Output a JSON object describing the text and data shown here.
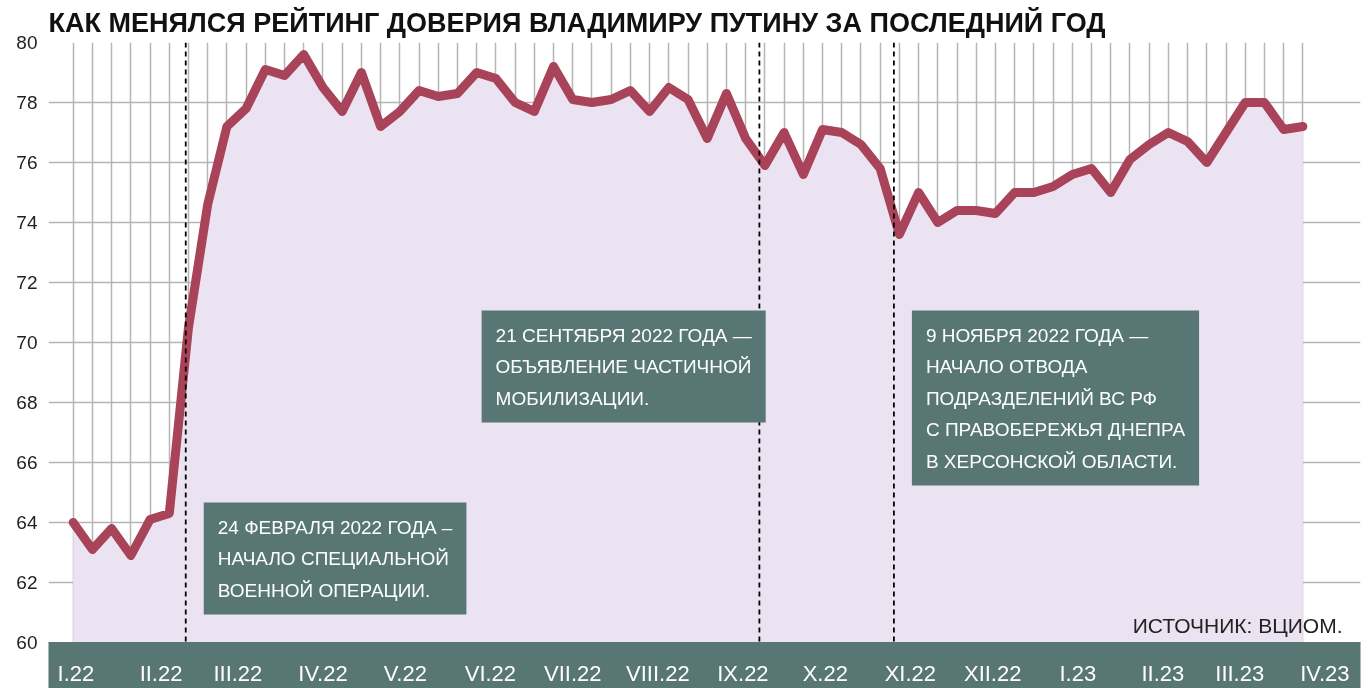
{
  "chart_data": {
    "type": "area",
    "title": "КАК МЕНЯЛСЯ РЕЙТИНГ ДОВЕРИЯ ВЛАДИМИРУ ПУТИНУ ЗА ПОСЛЕДНИЙ ГОД",
    "x": [
      "2022-01-14",
      "2022-01-21",
      "2022-01-28",
      "2022-02-04",
      "2022-02-11",
      "2022-02-18",
      "2022-02-25",
      "2022-03-04",
      "2022-03-11",
      "2022-03-18",
      "2022-03-25",
      "2022-04-01",
      "2022-04-08",
      "2022-04-15",
      "2022-04-22",
      "2022-04-29",
      "2022-05-06",
      "2022-05-13",
      "2022-05-20",
      "2022-05-27",
      "2022-06-03",
      "2022-06-10",
      "2022-06-17",
      "2022-06-24",
      "2022-07-01",
      "2022-07-08",
      "2022-07-15",
      "2022-07-22",
      "2022-07-29",
      "2022-08-05",
      "2022-08-12",
      "2022-08-19",
      "2022-08-26",
      "2022-09-02",
      "2022-09-09",
      "2022-09-16",
      "2022-09-23",
      "2022-09-30",
      "2022-10-07",
      "2022-10-14",
      "2022-10-21",
      "2022-10-28",
      "2022-11-04",
      "2022-11-11",
      "2022-11-18",
      "2022-11-25",
      "2022-12-02",
      "2022-12-09",
      "2022-12-16",
      "2022-12-23",
      "2022-12-30",
      "2023-01-06",
      "2023-01-13",
      "2023-01-20",
      "2023-01-27",
      "2023-02-03",
      "2023-02-10",
      "2023-02-17",
      "2023-02-24",
      "2023-03-03",
      "2023-03-10",
      "2023-03-17",
      "2023-03-24",
      "2023-03-31",
      "2023-04-07"
    ],
    "series": [
      {
        "color": "#a8435a",
        "values": [
          64.0,
          63.1,
          63.8,
          62.9,
          64.1,
          64.3,
          70.5,
          74.6,
          77.2,
          77.8,
          79.1,
          78.9,
          79.6,
          78.5,
          77.7,
          79.0,
          77.2,
          77.7,
          78.4,
          78.2,
          78.3,
          79.0,
          78.8,
          78.0,
          77.7,
          79.2,
          78.1,
          78.0,
          78.1,
          78.4,
          77.7,
          78.5,
          78.1,
          76.8,
          78.3,
          76.8,
          75.9,
          77.0,
          75.6,
          77.1,
          77.0,
          76.6,
          75.8,
          73.6,
          75.0,
          74.0,
          74.4,
          74.4,
          74.3,
          75.0,
          75.0,
          75.2,
          75.6,
          75.8,
          75.0,
          76.1,
          76.6,
          77.0,
          76.7,
          76.0,
          77.0,
          78.0,
          78.0,
          77.1,
          77.2
        ]
      }
    ],
    "xlim": [
      "2022-01-05",
      "2023-04-28"
    ],
    "xticks": [
      {
        "value": "2022-01-15",
        "label": "I.22"
      },
      {
        "value": "2022-02-15",
        "label": "II.22"
      },
      {
        "value": "2022-03-15",
        "label": "III.22"
      },
      {
        "value": "2022-04-15",
        "label": "IV.22"
      },
      {
        "value": "2022-05-15",
        "label": "V.22"
      },
      {
        "value": "2022-06-15",
        "label": "VI.22"
      },
      {
        "value": "2022-07-15",
        "label": "VII.22"
      },
      {
        "value": "2022-08-15",
        "label": "VIII.22"
      },
      {
        "value": "2022-09-15",
        "label": "IX.22"
      },
      {
        "value": "2022-10-15",
        "label": "X.22"
      },
      {
        "value": "2022-11-15",
        "label": "XI.22"
      },
      {
        "value": "2022-12-15",
        "label": "XII.22"
      },
      {
        "value": "2023-01-15",
        "label": "I.23"
      },
      {
        "value": "2023-02-15",
        "label": "II.23"
      },
      {
        "value": "2023-03-15",
        "label": "III.23"
      },
      {
        "value": "2023-04-15",
        "label": "IV.23"
      }
    ],
    "ylim": [
      60,
      80
    ],
    "yticks": [
      60,
      62,
      64,
      66,
      68,
      70,
      72,
      74,
      76,
      78,
      80
    ],
    "grid": true,
    "line_style": "solid",
    "marker": "none",
    "ref_lines": [
      {
        "axis": "x",
        "value": "2022-02-24",
        "label": "24 ФЕВРАЛЯ 2022 ГОДА –\nНАЧАЛО СПЕЦИАЛЬНОЙ\nВОЕННОЙ ОПЕРАЦИИ.",
        "color": "#000000",
        "line_style": "dashed"
      },
      {
        "axis": "x",
        "value": "2022-09-21",
        "label": "21 СЕНТЯБРЯ 2022 ГОДА —\nОБЪЯВЛЕНИЕ ЧАСТИЧНОЙ\nМОБИЛИЗАЦИИ.",
        "color": "#000000",
        "line_style": "dashed"
      },
      {
        "axis": "x",
        "value": "2022-11-09",
        "label": "9 НОЯБРЯ 2022 ГОДА —\nНАЧАЛО ОТВОДА\nПОДРАЗДЕЛЕНИЙ ВС РФ\nС ПРАВОБЕРЕЖЬЯ ДНЕПРА\nВ ХЕРСОНСКОЙ ОБЛАСТИ.",
        "color": "#000000",
        "line_style": "dashed"
      }
    ],
    "annotations": [
      "ИСТОЧНИК: ВЦИОМ."
    ]
  }
}
